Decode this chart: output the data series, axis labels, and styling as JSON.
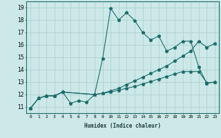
{
  "xlabel": "Humidex (Indice chaleur)",
  "bg_color": "#cce8e8",
  "grid_color": "#aacccc",
  "line_color": "#1a6b6b",
  "xlim": [
    -0.5,
    23.5
  ],
  "ylim": [
    10.5,
    19.5
  ],
  "xticks": [
    0,
    1,
    2,
    3,
    4,
    5,
    6,
    7,
    8,
    9,
    10,
    11,
    12,
    13,
    14,
    15,
    16,
    17,
    18,
    19,
    20,
    21,
    22,
    23
  ],
  "yticks": [
    11,
    12,
    13,
    14,
    15,
    16,
    17,
    18,
    19
  ],
  "series1_x": [
    0,
    1,
    2,
    3,
    4,
    5,
    6,
    7,
    8,
    9,
    10,
    11,
    12,
    13,
    14,
    15,
    16,
    17,
    18,
    19,
    20,
    21,
    22,
    23
  ],
  "series1_y": [
    10.9,
    11.7,
    11.9,
    11.9,
    12.2,
    11.3,
    11.5,
    11.4,
    12.0,
    14.9,
    18.95,
    18.0,
    18.6,
    17.95,
    17.0,
    16.4,
    16.7,
    15.5,
    15.8,
    16.3,
    16.3,
    14.2,
    12.9,
    13.0
  ],
  "series2_x": [
    0,
    1,
    2,
    3,
    4,
    8,
    9,
    10,
    11,
    12,
    13,
    14,
    15,
    16,
    17,
    18,
    19,
    20,
    21,
    22,
    23
  ],
  "series2_y": [
    10.9,
    11.7,
    11.9,
    11.9,
    12.2,
    12.0,
    12.1,
    12.3,
    12.5,
    12.8,
    13.1,
    13.4,
    13.7,
    14.0,
    14.3,
    14.7,
    15.1,
    15.5,
    16.3,
    15.8,
    16.1
  ],
  "series3_x": [
    0,
    1,
    2,
    3,
    4,
    8,
    9,
    10,
    11,
    12,
    13,
    14,
    15,
    16,
    17,
    18,
    19,
    20,
    21,
    22,
    23
  ],
  "series3_y": [
    10.9,
    11.7,
    11.9,
    11.9,
    12.2,
    12.0,
    12.1,
    12.2,
    12.35,
    12.5,
    12.65,
    12.85,
    13.05,
    13.25,
    13.45,
    13.65,
    13.85,
    13.85,
    13.85,
    12.95,
    13.0
  ]
}
